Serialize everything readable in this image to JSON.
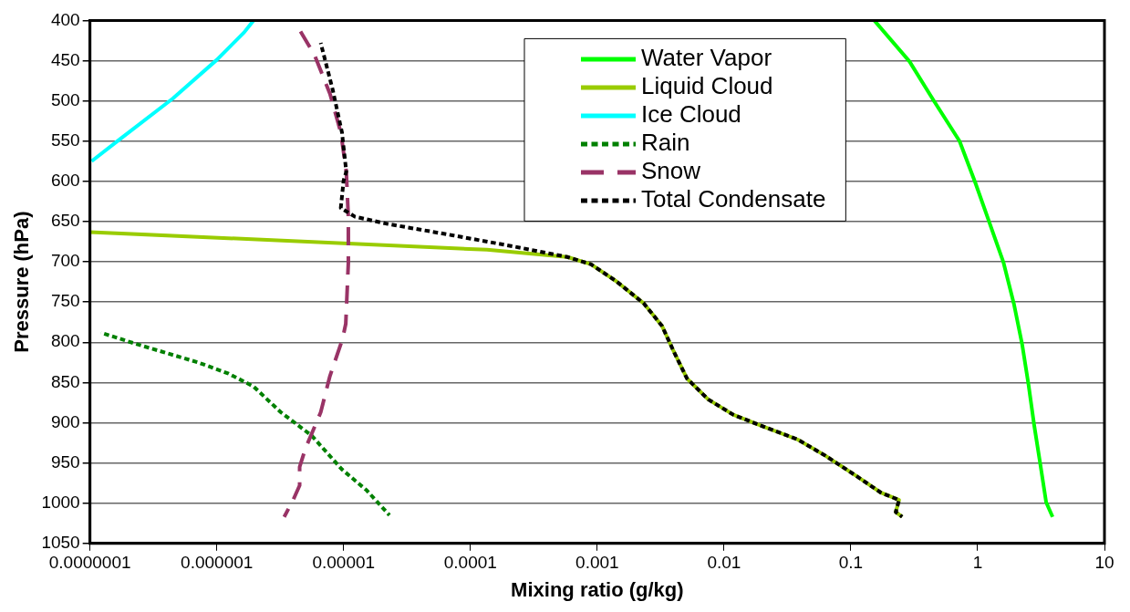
{
  "chart_data": {
    "type": "line",
    "xlabel": "Mixing ratio (g/kg)",
    "ylabel": "Pressure (hPa)",
    "log": "x",
    "xlim": [
      1e-07,
      10
    ],
    "xticks": [
      {
        "value": 1e-07,
        "label": "0.0000001"
      },
      {
        "value": 1e-06,
        "label": "0.000001"
      },
      {
        "value": 1e-05,
        "label": "0.00001"
      },
      {
        "value": 0.0001,
        "label": "0.0001"
      },
      {
        "value": 0.001,
        "label": "0.001"
      },
      {
        "value": 0.01,
        "label": "0.01"
      },
      {
        "value": 0.1,
        "label": "0.1"
      },
      1,
      10
    ],
    "ylim": [
      1050,
      400
    ],
    "yticks": [
      400,
      450,
      500,
      550,
      600,
      650,
      700,
      750,
      800,
      850,
      900,
      950,
      1000,
      1050
    ],
    "grid": "y",
    "legend": "top right",
    "marker": "none",
    "series": [
      {
        "name": "Water Vapor",
        "color": "#00ff00",
        "line_style": "solid",
        "x": [
          0.153,
          0.29,
          0.456,
          0.72,
          0.955,
          1.23,
          1.6,
          1.93,
          2.24,
          2.52,
          2.79,
          3.13,
          3.47,
          3.9
        ],
        "values": [
          400,
          451,
          501,
          550,
          601,
          650,
          701,
          752,
          802,
          853,
          903,
          953,
          999,
          1017
        ]
      },
      {
        "name": "Liquid Cloud",
        "color": "#99cc00",
        "line_style": "solid",
        "x": [
          1e-07,
          0.000135,
          0.00058,
          0.00089,
          0.00141,
          0.00234,
          0.00325,
          0.004,
          0.0051,
          0.0075,
          0.0118,
          0.0206,
          0.0382,
          0.063,
          0.11,
          0.173,
          0.24,
          0.226,
          0.254
        ],
        "values": [
          663,
          685,
          694,
          703,
          724,
          752,
          780,
          811,
          845,
          871,
          890,
          905,
          921,
          941,
          966,
          987,
          996,
          1011,
          1017
        ]
      },
      {
        "name": "Ice Cloud",
        "color": "#00ffff",
        "line_style": "solid",
        "x": [
          1.03e-07,
          1.74e-07,
          4.5e-07,
          1e-06,
          1.64e-06,
          1.95e-06
        ],
        "values": [
          575,
          547,
          497,
          449,
          415,
          400
        ]
      },
      {
        "name": "Rain",
        "color": "#008000",
        "line_style": "dotted",
        "x": [
          1.22e-07,
          2.3e-07,
          7.1e-07,
          1.24e-06,
          1.95e-06,
          3.2e-06,
          5.6e-06,
          9.7e-06,
          1.52e-05,
          2.3e-05
        ],
        "values": [
          788,
          802,
          825,
          839,
          855,
          887,
          916,
          958,
          984,
          1015
        ]
      },
      {
        "name": "Snow",
        "color": "#993366",
        "line_style": "dashed",
        "x": [
          4.5e-06,
          5.9e-06,
          7.8e-06,
          9.5e-06,
          1.05e-05,
          1.09e-05,
          1.09e-05,
          1.04e-05,
          9.8e-06,
          7.8e-06,
          6.6e-06,
          5e-06,
          4.5e-06,
          4.5e-06,
          4e-06,
          3.4e-06
        ],
        "values": [
          412,
          443,
          491,
          539,
          588,
          645,
          701,
          777,
          796,
          842,
          887,
          932,
          955,
          978,
          996,
          1017
        ]
      },
      {
        "name": "Total Condensate",
        "color": "#000000",
        "line_style": "dotted",
        "x": [
          6.6e-06,
          8.2e-06,
          9.7e-06,
          1.05e-05,
          1e-05,
          9.5e-06,
          1.23e-05,
          2.24e-05,
          7.2e-05,
          0.00022,
          0.00058,
          0.00089,
          0.00141,
          0.00234,
          0.00325,
          0.004,
          0.0051,
          0.0075,
          0.0118,
          0.0206,
          0.0382,
          0.063,
          0.11,
          0.173,
          0.24,
          0.226,
          0.254
        ],
        "values": [
          428,
          486,
          539,
          588,
          599,
          633,
          644,
          653,
          667,
          681,
          694,
          703,
          724,
          752,
          780,
          811,
          845,
          871,
          890,
          905,
          921,
          941,
          966,
          987,
          996,
          1011,
          1017
        ]
      }
    ]
  }
}
